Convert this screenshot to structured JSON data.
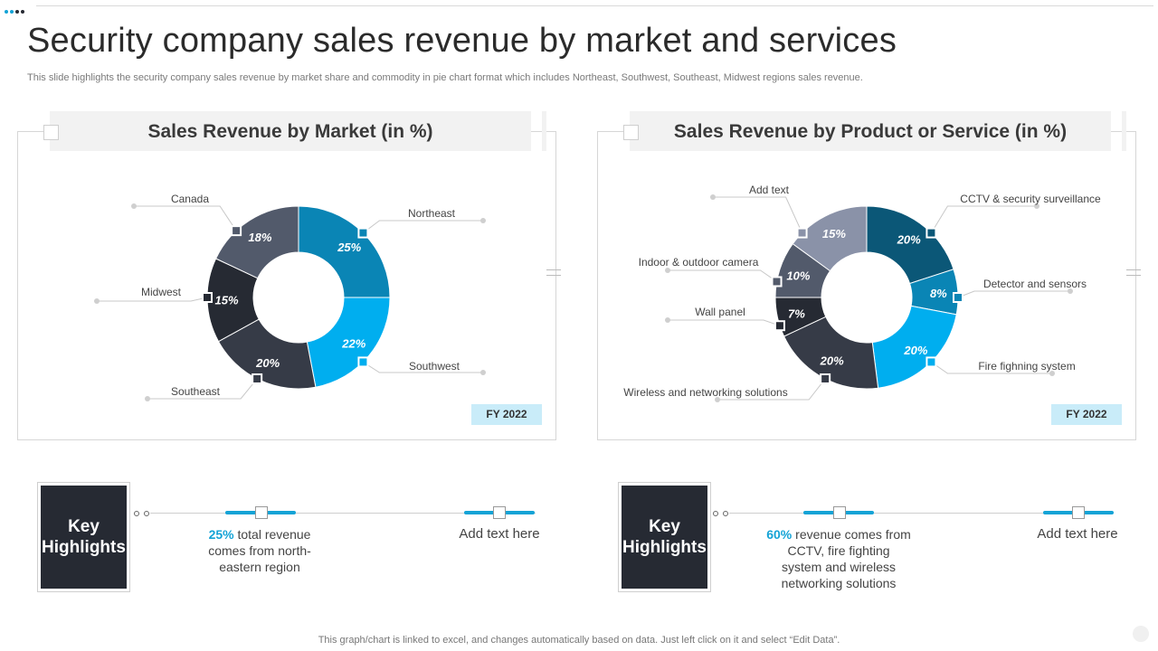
{
  "title": "Security company sales revenue by market and services",
  "subtitle": "This slide highlights the security company sales revenue by market share and commodity in pie chart format which includes Northeast, Southwest, Southeast, Midwest regions sales revenue.",
  "footer": "This graph/chart is linked to excel,  and changes automatically based on data. Just left click on it and select “Edit Data”.",
  "colors": {
    "accent": "#14a3d6",
    "dark": "#262a33"
  },
  "chart_data": [
    {
      "type": "pie",
      "title": "Sales Revenue by Market (in %)",
      "badge": "FY 2022",
      "categories": [
        "Northeast",
        "Southwest",
        "Southeast",
        "Midwest",
        "Canada"
      ],
      "values": [
        25,
        22,
        20,
        15,
        18
      ],
      "labels": [
        "25%",
        "22%",
        "20%",
        "15%",
        "18%"
      ],
      "colors": [
        "#0a85b5",
        "#00aeef",
        "#363b47",
        "#262a33",
        "#525a6b"
      ]
    },
    {
      "type": "pie",
      "title": "Sales Revenue by Product or Service (in %)",
      "badge": "FY 2022",
      "categories": [
        "CCTV & security surveillance",
        "Detector and sensors",
        "Fire fighning system",
        "Wireless and networking solutions",
        "Wall panel",
        "Indoor & outdoor camera",
        "Add text"
      ],
      "values": [
        20,
        8,
        20,
        20,
        7,
        10,
        15
      ],
      "labels": [
        "20%",
        "8%",
        "20%",
        "20%",
        "7%",
        "10%",
        "15%"
      ],
      "colors": [
        "#0b5777",
        "#0a85b5",
        "#00aeef",
        "#363b47",
        "#262a33",
        "#525a6b",
        "#8a92a8"
      ]
    }
  ],
  "highlights": [
    {
      "box_line1": "Key",
      "box_line2": "Highlights",
      "accent": "25%",
      "text": " total revenue comes from north-eastern region",
      "extra": "Add text here"
    },
    {
      "box_line1": "Key",
      "box_line2": "Highlights",
      "accent": "60%",
      "text": " revenue comes from CCTV, fire fighting system and wireless networking solutions",
      "extra": "Add text here"
    }
  ]
}
